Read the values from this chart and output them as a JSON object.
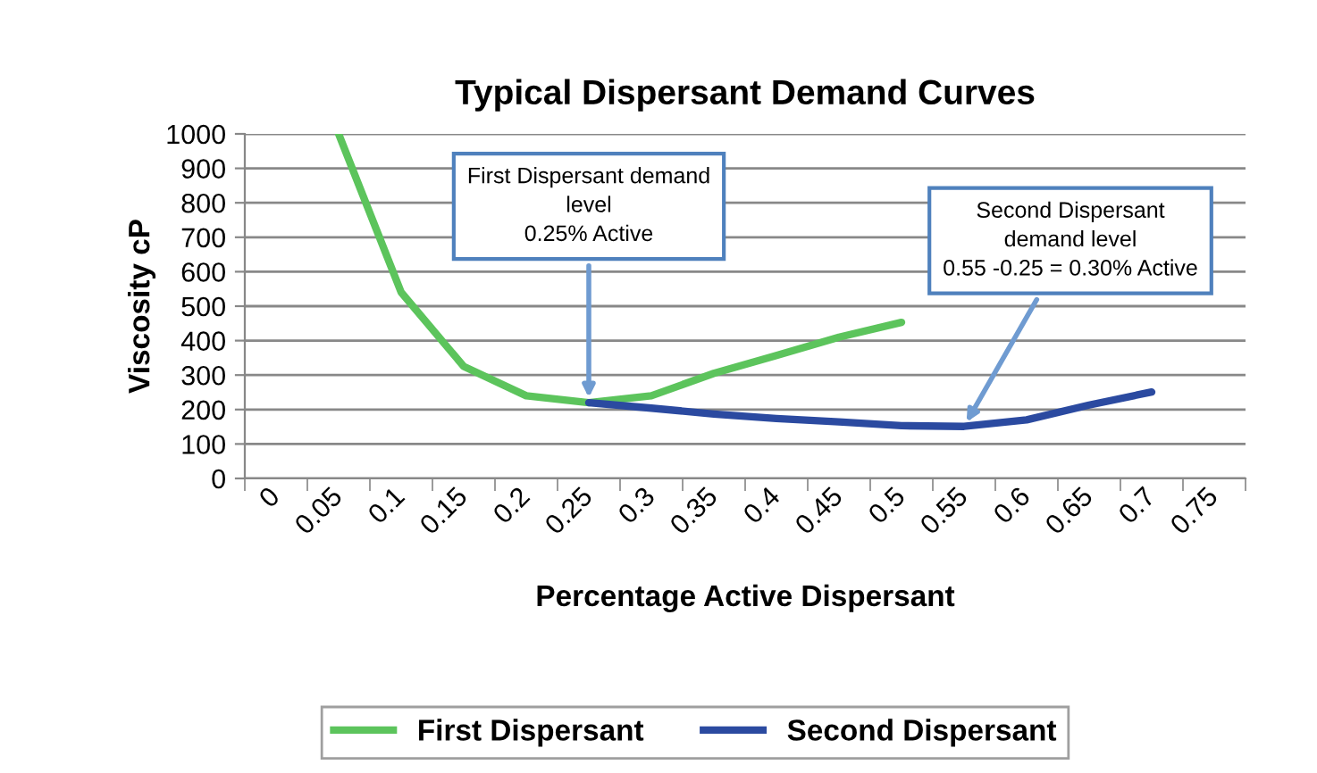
{
  "chart_data": {
    "type": "line",
    "title": "Typical Dispersant Demand Curves",
    "xlabel": "Percentage Active Dispersant",
    "ylabel": "Viscosity cP",
    "categories": [
      "0",
      "0.05",
      "0.1",
      "0.15",
      "0.2",
      "0.25",
      "0.3",
      "0.35",
      "0.4",
      "0.45",
      "0.5",
      "0.55",
      "0.6",
      "0.65",
      "0.7",
      "0.75"
    ],
    "series": [
      {
        "name": "First Dispersant",
        "color": "#5cc45c",
        "values": [
          null,
          1000,
          540,
          325,
          240,
          220,
          240,
          305,
          357,
          410,
          453,
          null,
          null,
          null,
          null,
          null
        ]
      },
      {
        "name": "Second Dispersant",
        "color": "#2b4aa0",
        "values": [
          null,
          null,
          null,
          null,
          null,
          220,
          204,
          187,
          174,
          164,
          153,
          151,
          170,
          213,
          251,
          null
        ]
      }
    ],
    "ylim": [
      0,
      1000
    ],
    "yticks": [
      0,
      100,
      200,
      300,
      400,
      500,
      600,
      700,
      800,
      900,
      1000
    ],
    "grid": "y",
    "legend": "bottom",
    "marker": "none",
    "line_style": "solid",
    "annotations": [
      {
        "text": "First Dispersant demand\nlevel\n0.25% Active",
        "x": "0.25",
        "y": 220
      },
      {
        "text": "Second Dispersant\ndemand level\n0.55 -0.25 = 0.30% Active",
        "x": "0.55",
        "y": 151
      }
    ]
  }
}
